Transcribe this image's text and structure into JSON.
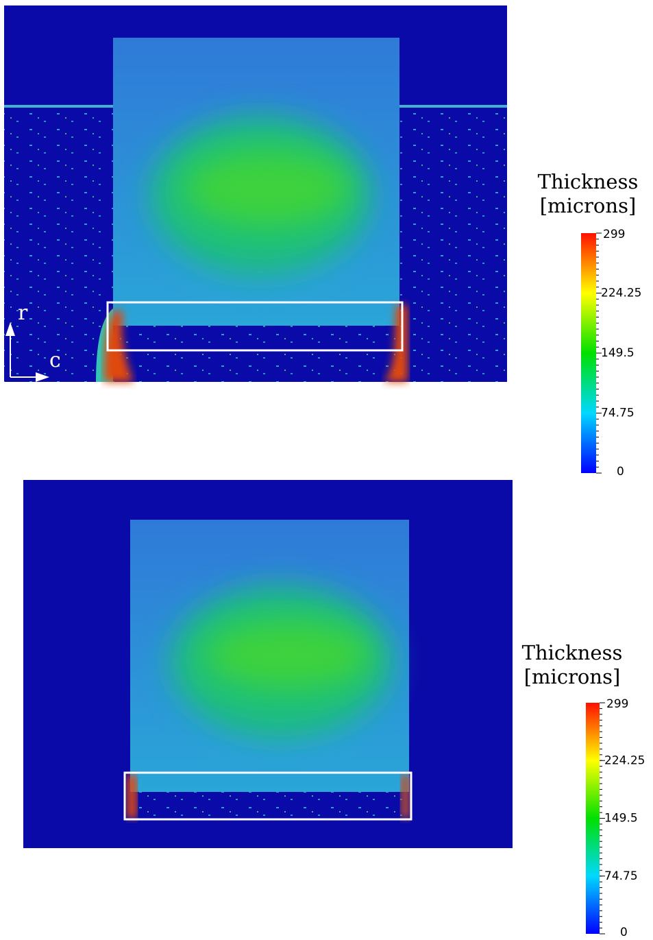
{
  "panels": [
    {
      "axis_labels": [
        "r",
        "c"
      ],
      "colorbar": {
        "title": "Thickness",
        "unit": "[microns]",
        "lim": [
          0,
          299
        ],
        "ticks": [
          0,
          74.75,
          149.5,
          224.25,
          299
        ]
      }
    },
    {
      "colorbar": {
        "title": "Thickness",
        "unit": "[microns]",
        "lim": [
          0,
          299
        ],
        "ticks": [
          0,
          74.75,
          149.5,
          224.25,
          299
        ]
      }
    }
  ]
}
